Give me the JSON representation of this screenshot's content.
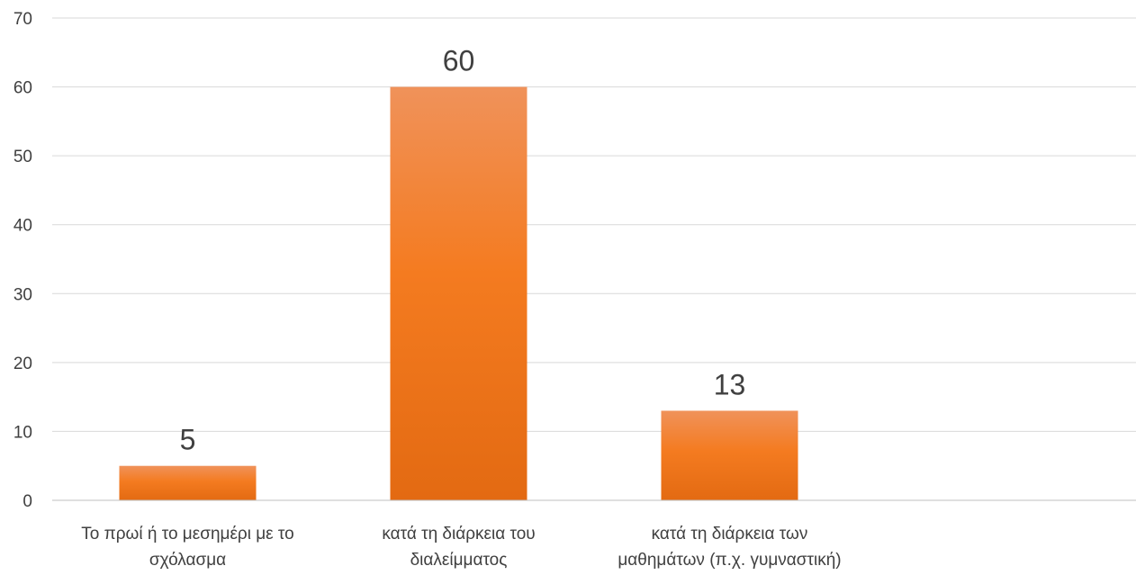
{
  "chart_data": {
    "type": "bar",
    "title": "",
    "xlabel": "",
    "ylabel": "",
    "ylim": [
      0,
      70
    ],
    "yticks": [
      0,
      10,
      20,
      30,
      40,
      50,
      60,
      70
    ],
    "ytick_labels": [
      "0",
      "10",
      "20",
      "30",
      "40",
      "50",
      "60",
      "70"
    ],
    "grid": true,
    "legend": "none",
    "categories": [
      [
        "Το πρωί ή το μεσημέρι με το",
        "σχόλασμα"
      ],
      [
        "κατά τη διάρκεια του",
        "διαλείμματος"
      ],
      [
        "κατά τη διάρκεια των",
        "μαθημάτων (π.χ. γυμναστική)"
      ]
    ],
    "values": [
      5,
      60,
      13
    ],
    "data_labels": [
      "5",
      "60",
      "13"
    ],
    "slots": 4,
    "colors": {
      "bar_top": "#F0925A",
      "bar_mid": "#F47B20",
      "bar_bottom": "#E36A12",
      "grid": "#D9D9D9",
      "axis": "#BFBFBF",
      "text": "#404040"
    }
  }
}
